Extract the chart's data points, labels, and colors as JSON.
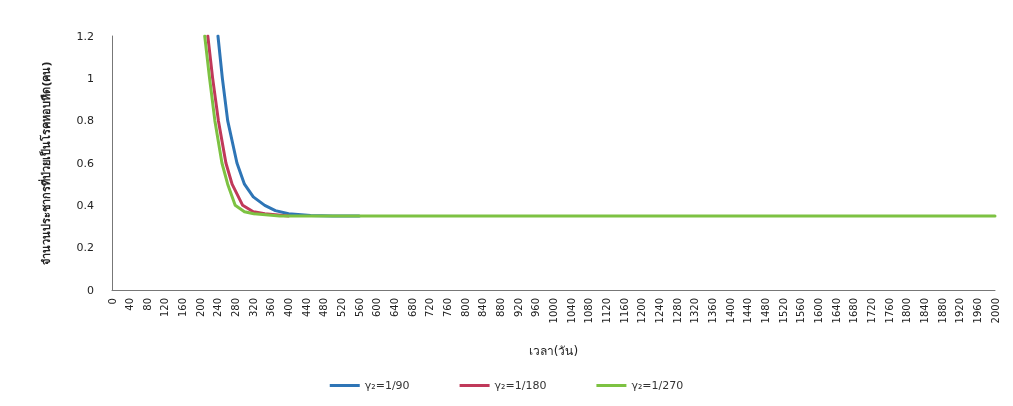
{
  "chart_data": {
    "type": "line",
    "xlabel": "เวลา(วัน)",
    "ylabel": "จำนวนประชากรที่ป่วยเป็นโรคหอบหืด(คน)",
    "xlim": [
      0,
      2000
    ],
    "xticks": [
      0,
      40,
      80,
      120,
      160,
      200,
      240,
      280,
      320,
      360,
      400,
      440,
      480,
      520,
      560,
      600,
      640,
      680,
      720,
      760,
      800,
      840,
      880,
      920,
      960,
      1000,
      1040,
      1080,
      1120,
      1160,
      1200,
      1240,
      1280,
      1320,
      1360,
      1400,
      1440,
      1480,
      1520,
      1560,
      1600,
      1640,
      1680,
      1720,
      1760,
      1800,
      1840,
      1880,
      1920,
      1960,
      2000
    ],
    "ylim": [
      0,
      1.2
    ],
    "yticks": [
      0,
      0.2,
      0.4,
      0.6,
      0.8,
      1,
      1.2
    ],
    "grid": false,
    "legend": "bottom",
    "marker": "none",
    "line_style": "solid",
    "series": [
      {
        "name": "γ₂=1/90",
        "color": "#2e75b6",
        "x": [
          240,
          250,
          262,
          283,
          300,
          320,
          346,
          370,
          400,
          450,
          500,
          560
        ],
        "values": [
          1.2,
          1.0,
          0.8,
          0.6,
          0.5,
          0.44,
          0.4,
          0.375,
          0.36,
          0.352,
          0.35,
          0.35
        ]
      },
      {
        "name": "γ₂=1/180",
        "color": "#c0395a",
        "x": [
          217,
          228,
          241,
          258,
          272,
          296,
          320,
          346,
          400
        ],
        "values": [
          1.2,
          1.0,
          0.8,
          0.6,
          0.5,
          0.4,
          0.37,
          0.36,
          0.35
        ]
      },
      {
        "name": "γ₂=1/270",
        "color": "#7dc242",
        "x": [
          210,
          221,
          233,
          249,
          262,
          279,
          300,
          321,
          380,
          2000
        ],
        "values": [
          1.2,
          1.0,
          0.8,
          0.6,
          0.5,
          0.4,
          0.37,
          0.36,
          0.35,
          0.35
        ]
      }
    ]
  }
}
